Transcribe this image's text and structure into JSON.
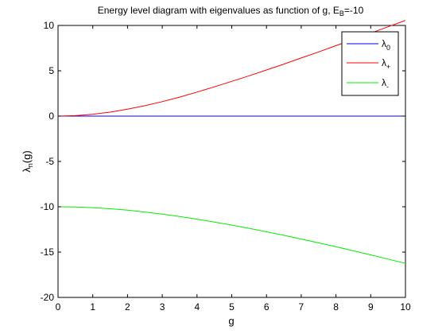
{
  "chart_data": {
    "type": "line",
    "title_main": "Energy level diagram with eigenvalues as function of g, E",
    "title_sub": "B",
    "title_tail": "=-10",
    "xlabel": "g",
    "ylabel_main": "λ",
    "ylabel_sub": "n",
    "ylabel_tail": "(g)",
    "xlim": [
      0,
      10
    ],
    "ylim": [
      -20,
      10
    ],
    "xticks": [
      "0",
      "1",
      "2",
      "3",
      "4",
      "5",
      "6",
      "7",
      "8",
      "9",
      "10"
    ],
    "yticks": [
      "10",
      "5",
      "0",
      "-5",
      "-10",
      "-15",
      "-20"
    ],
    "grid": false,
    "legend_position": "top-right",
    "x": [
      0,
      0.5,
      1,
      1.5,
      2,
      2.5,
      3,
      3.5,
      4,
      4.5,
      5,
      5.5,
      6,
      6.5,
      7,
      7.5,
      8,
      8.5,
      9,
      9.5,
      10
    ],
    "series": [
      {
        "name_main": "λ",
        "name_sub": "0",
        "color": "#0000ff",
        "values": [
          0,
          0,
          0,
          0,
          0,
          0,
          0,
          0,
          0,
          0,
          0,
          0,
          0,
          0,
          0,
          0,
          0,
          0,
          0,
          0,
          0
        ]
      },
      {
        "name_main": "λ",
        "name_sub": "+",
        "color": "#ff0000",
        "values": [
          0,
          0.05,
          0.2,
          0.44,
          0.76,
          1.15,
          1.6,
          2.1,
          2.65,
          3.23,
          3.83,
          4.45,
          5.09,
          5.74,
          6.41,
          7.08,
          7.77,
          8.46,
          9.15,
          9.85,
          10.55
        ]
      },
      {
        "name_main": "λ",
        "name_sub": "-",
        "color": "#00ee00",
        "values": [
          -10,
          -10.02,
          -10.1,
          -10.22,
          -10.38,
          -10.58,
          -10.81,
          -11.08,
          -11.37,
          -11.69,
          -12.02,
          -12.38,
          -12.76,
          -13.15,
          -13.56,
          -13.98,
          -14.41,
          -14.86,
          -15.31,
          -15.77,
          -16.24
        ]
      }
    ]
  }
}
